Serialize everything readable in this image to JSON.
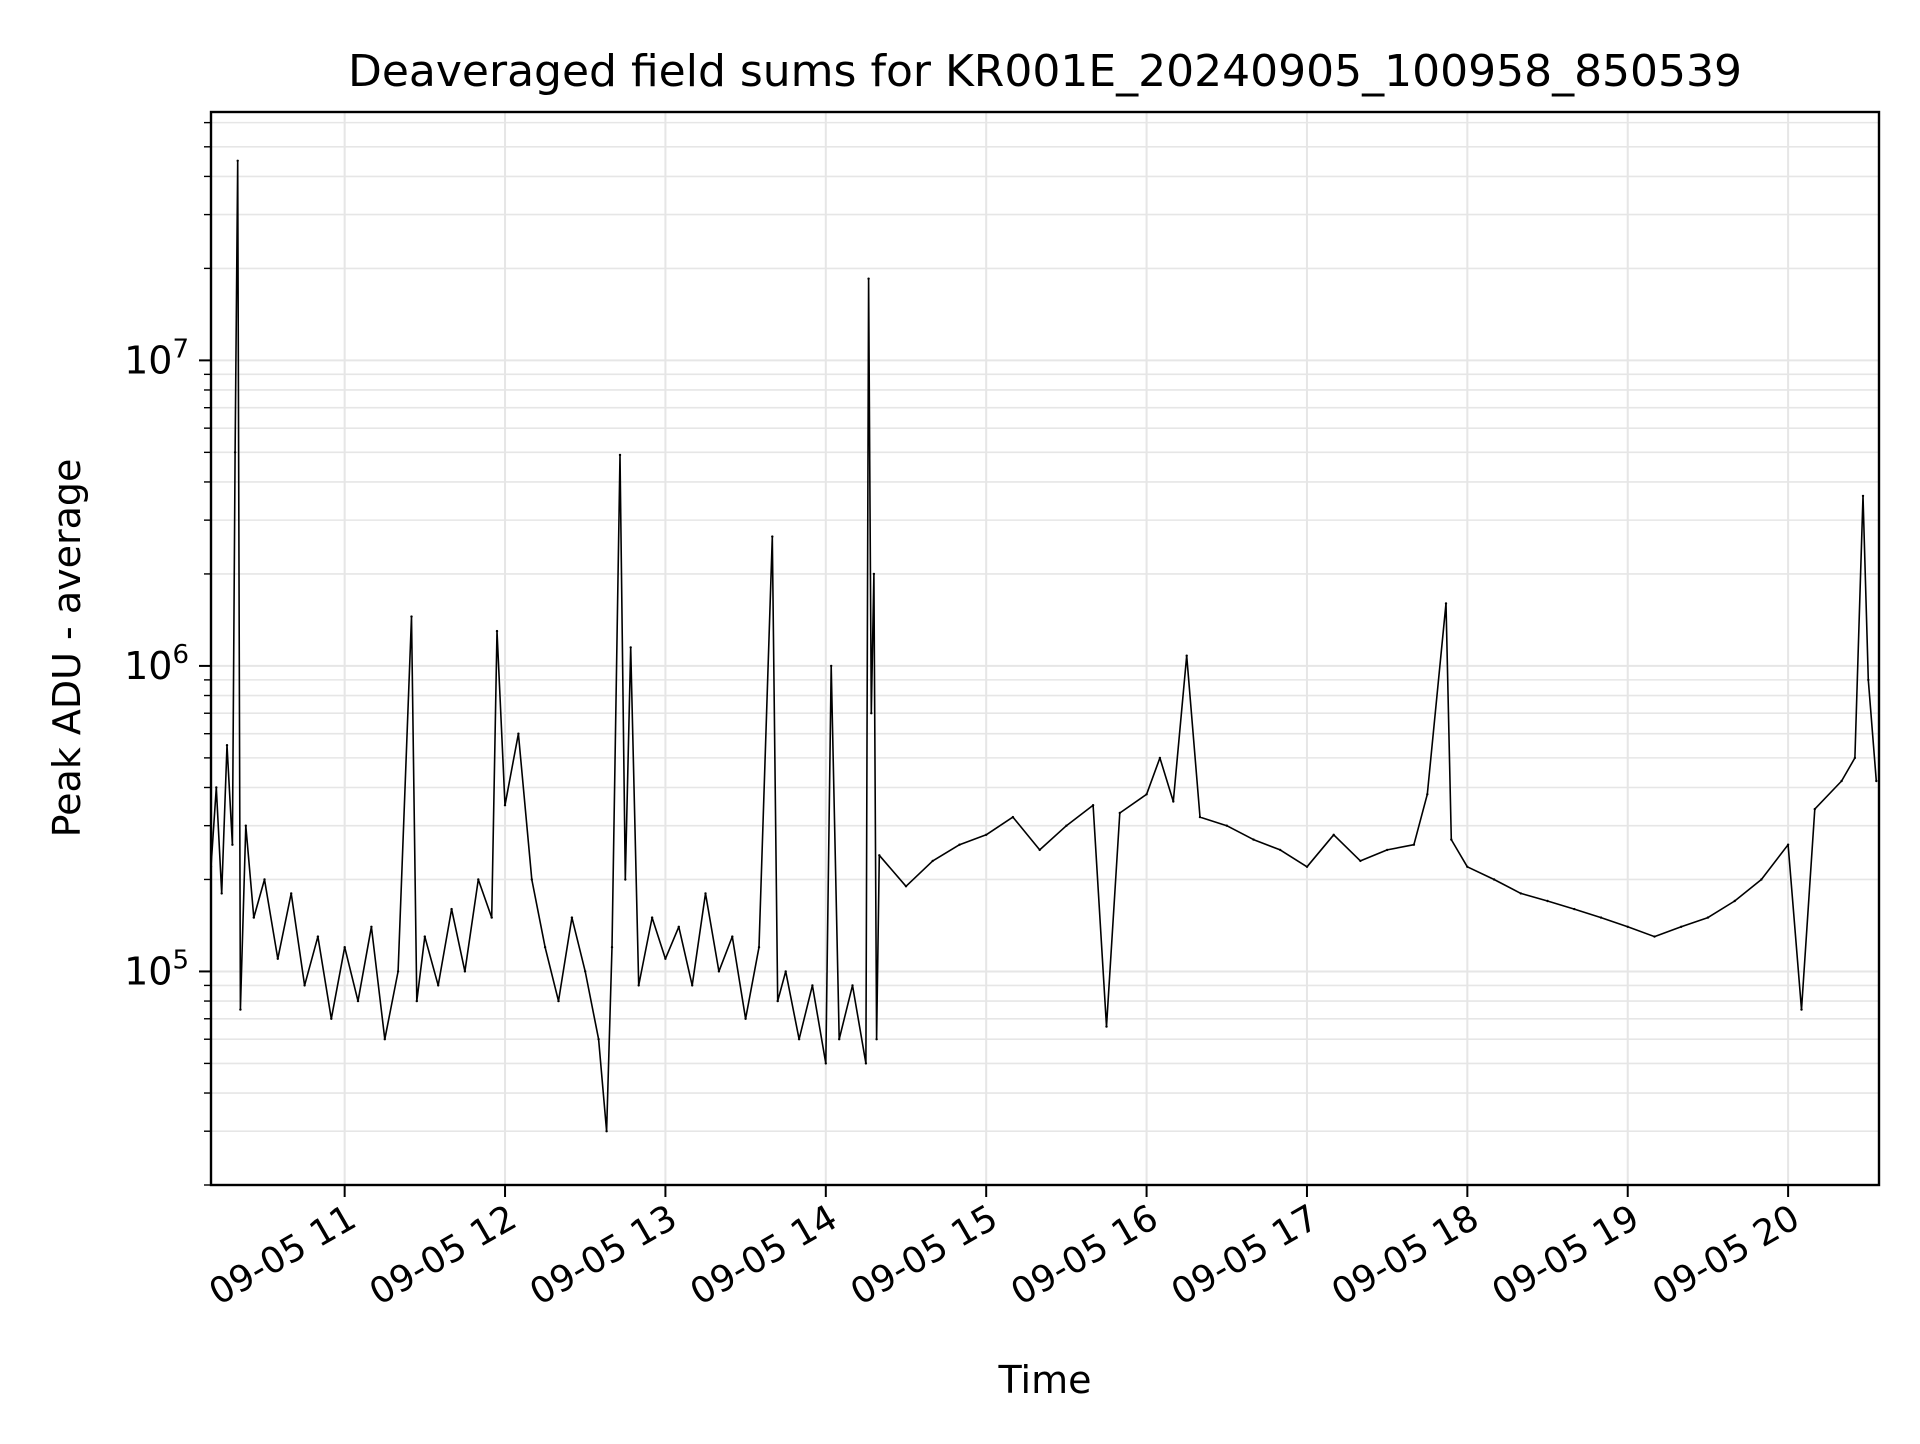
{
  "chart_data": {
    "type": "line",
    "title": "Deaveraged field sums for KR001E_20240905_100958_850539",
    "xlabel": "Time",
    "ylabel": "Peak ADU - average",
    "yscale": "log",
    "xlim": [
      "09-05 10:10",
      "09-05 20:34"
    ],
    "ylim": [
      20000,
      65000000
    ],
    "grid": true,
    "grid_color": "#e6e6e6",
    "line_color": "#000000",
    "x_ticks": [
      "09-05 11",
      "09-05 12",
      "09-05 13",
      "09-05 14",
      "09-05 15",
      "09-05 16",
      "09-05 17",
      "09-05 18",
      "09-05 19",
      "09-05 20"
    ],
    "y_ticks": [
      {
        "value": 100000,
        "base": "10",
        "exp": "5"
      },
      {
        "value": 1000000,
        "base": "10",
        "exp": "6"
      },
      {
        "value": 10000000,
        "base": "10",
        "exp": "7"
      }
    ],
    "series": [
      {
        "values": [
          [
            "09-05 10:10",
            220000
          ],
          [
            "09-05 10:12",
            400000
          ],
          [
            "09-05 10:14",
            180000
          ],
          [
            "09-05 10:16",
            550000
          ],
          [
            "09-05 10:18",
            260000
          ],
          [
            "09-05 10:19",
            5000000
          ],
          [
            "09-05 10:20",
            45000000
          ],
          [
            "09-05 10:21",
            75000
          ],
          [
            "09-05 10:23",
            300000
          ],
          [
            "09-05 10:26",
            150000
          ],
          [
            "09-05 10:30",
            200000
          ],
          [
            "09-05 10:35",
            110000
          ],
          [
            "09-05 10:40",
            180000
          ],
          [
            "09-05 10:45",
            90000
          ],
          [
            "09-05 10:50",
            130000
          ],
          [
            "09-05 10:55",
            70000
          ],
          [
            "09-05 11:00",
            120000
          ],
          [
            "09-05 11:05",
            80000
          ],
          [
            "09-05 11:10",
            140000
          ],
          [
            "09-05 11:15",
            60000
          ],
          [
            "09-05 11:20",
            100000
          ],
          [
            "09-05 11:25",
            1450000
          ],
          [
            "09-05 11:27",
            80000
          ],
          [
            "09-05 11:30",
            130000
          ],
          [
            "09-05 11:35",
            90000
          ],
          [
            "09-05 11:40",
            160000
          ],
          [
            "09-05 11:45",
            100000
          ],
          [
            "09-05 11:50",
            200000
          ],
          [
            "09-05 11:55",
            150000
          ],
          [
            "09-05 11:57",
            1300000
          ],
          [
            "09-05 12:00",
            350000
          ],
          [
            "09-05 12:05",
            600000
          ],
          [
            "09-05 12:10",
            200000
          ],
          [
            "09-05 12:15",
            120000
          ],
          [
            "09-05 12:20",
            80000
          ],
          [
            "09-05 12:25",
            150000
          ],
          [
            "09-05 12:30",
            100000
          ],
          [
            "09-05 12:35",
            60000
          ],
          [
            "09-05 12:38",
            30000
          ],
          [
            "09-05 12:40",
            120000
          ],
          [
            "09-05 12:43",
            4900000
          ],
          [
            "09-05 12:45",
            200000
          ],
          [
            "09-05 12:47",
            1150000
          ],
          [
            "09-05 12:50",
            90000
          ],
          [
            "09-05 12:55",
            150000
          ],
          [
            "09-05 13:00",
            110000
          ],
          [
            "09-05 13:05",
            140000
          ],
          [
            "09-05 13:10",
            90000
          ],
          [
            "09-05 13:15",
            180000
          ],
          [
            "09-05 13:20",
            100000
          ],
          [
            "09-05 13:25",
            130000
          ],
          [
            "09-05 13:30",
            70000
          ],
          [
            "09-05 13:35",
            120000
          ],
          [
            "09-05 13:40",
            2650000
          ],
          [
            "09-05 13:42",
            80000
          ],
          [
            "09-05 13:45",
            100000
          ],
          [
            "09-05 13:50",
            60000
          ],
          [
            "09-05 13:55",
            90000
          ],
          [
            "09-05 14:00",
            50000
          ],
          [
            "09-05 14:02",
            1000000
          ],
          [
            "09-05 14:05",
            60000
          ],
          [
            "09-05 14:10",
            90000
          ],
          [
            "09-05 14:15",
            50000
          ],
          [
            "09-05 14:16",
            18500000
          ],
          [
            "09-05 14:17",
            700000
          ],
          [
            "09-05 14:18",
            2000000
          ],
          [
            "09-05 14:19",
            60000
          ],
          [
            "09-05 14:20",
            240000
          ],
          [
            "09-05 14:30",
            190000
          ],
          [
            "09-05 14:40",
            230000
          ],
          [
            "09-05 14:50",
            260000
          ],
          [
            "09-05 15:00",
            280000
          ],
          [
            "09-05 15:10",
            320000
          ],
          [
            "09-05 15:20",
            250000
          ],
          [
            "09-05 15:30",
            300000
          ],
          [
            "09-05 15:40",
            350000
          ],
          [
            "09-05 15:45",
            66000
          ],
          [
            "09-05 15:50",
            330000
          ],
          [
            "09-05 16:00",
            380000
          ],
          [
            "09-05 16:05",
            500000
          ],
          [
            "09-05 16:10",
            360000
          ],
          [
            "09-05 16:15",
            1080000
          ],
          [
            "09-05 16:20",
            320000
          ],
          [
            "09-05 16:30",
            300000
          ],
          [
            "09-05 16:40",
            270000
          ],
          [
            "09-05 16:50",
            250000
          ],
          [
            "09-05 17:00",
            220000
          ],
          [
            "09-05 17:10",
            280000
          ],
          [
            "09-05 17:20",
            230000
          ],
          [
            "09-05 17:30",
            250000
          ],
          [
            "09-05 17:40",
            260000
          ],
          [
            "09-05 17:45",
            380000
          ],
          [
            "09-05 17:52",
            1600000
          ],
          [
            "09-05 17:54",
            270000
          ],
          [
            "09-05 18:00",
            220000
          ],
          [
            "09-05 18:10",
            200000
          ],
          [
            "09-05 18:20",
            180000
          ],
          [
            "09-05 18:30",
            170000
          ],
          [
            "09-05 18:40",
            160000
          ],
          [
            "09-05 18:50",
            150000
          ],
          [
            "09-05 19:00",
            140000
          ],
          [
            "09-05 19:10",
            130000
          ],
          [
            "09-05 19:20",
            140000
          ],
          [
            "09-05 19:30",
            150000
          ],
          [
            "09-05 19:40",
            170000
          ],
          [
            "09-05 19:50",
            200000
          ],
          [
            "09-05 20:00",
            260000
          ],
          [
            "09-05 20:05",
            75000
          ],
          [
            "09-05 20:10",
            340000
          ],
          [
            "09-05 20:20",
            420000
          ],
          [
            "09-05 20:25",
            500000
          ],
          [
            "09-05 20:28",
            3600000
          ],
          [
            "09-05 20:30",
            900000
          ],
          [
            "09-05 20:33",
            420000
          ]
        ]
      }
    ]
  }
}
